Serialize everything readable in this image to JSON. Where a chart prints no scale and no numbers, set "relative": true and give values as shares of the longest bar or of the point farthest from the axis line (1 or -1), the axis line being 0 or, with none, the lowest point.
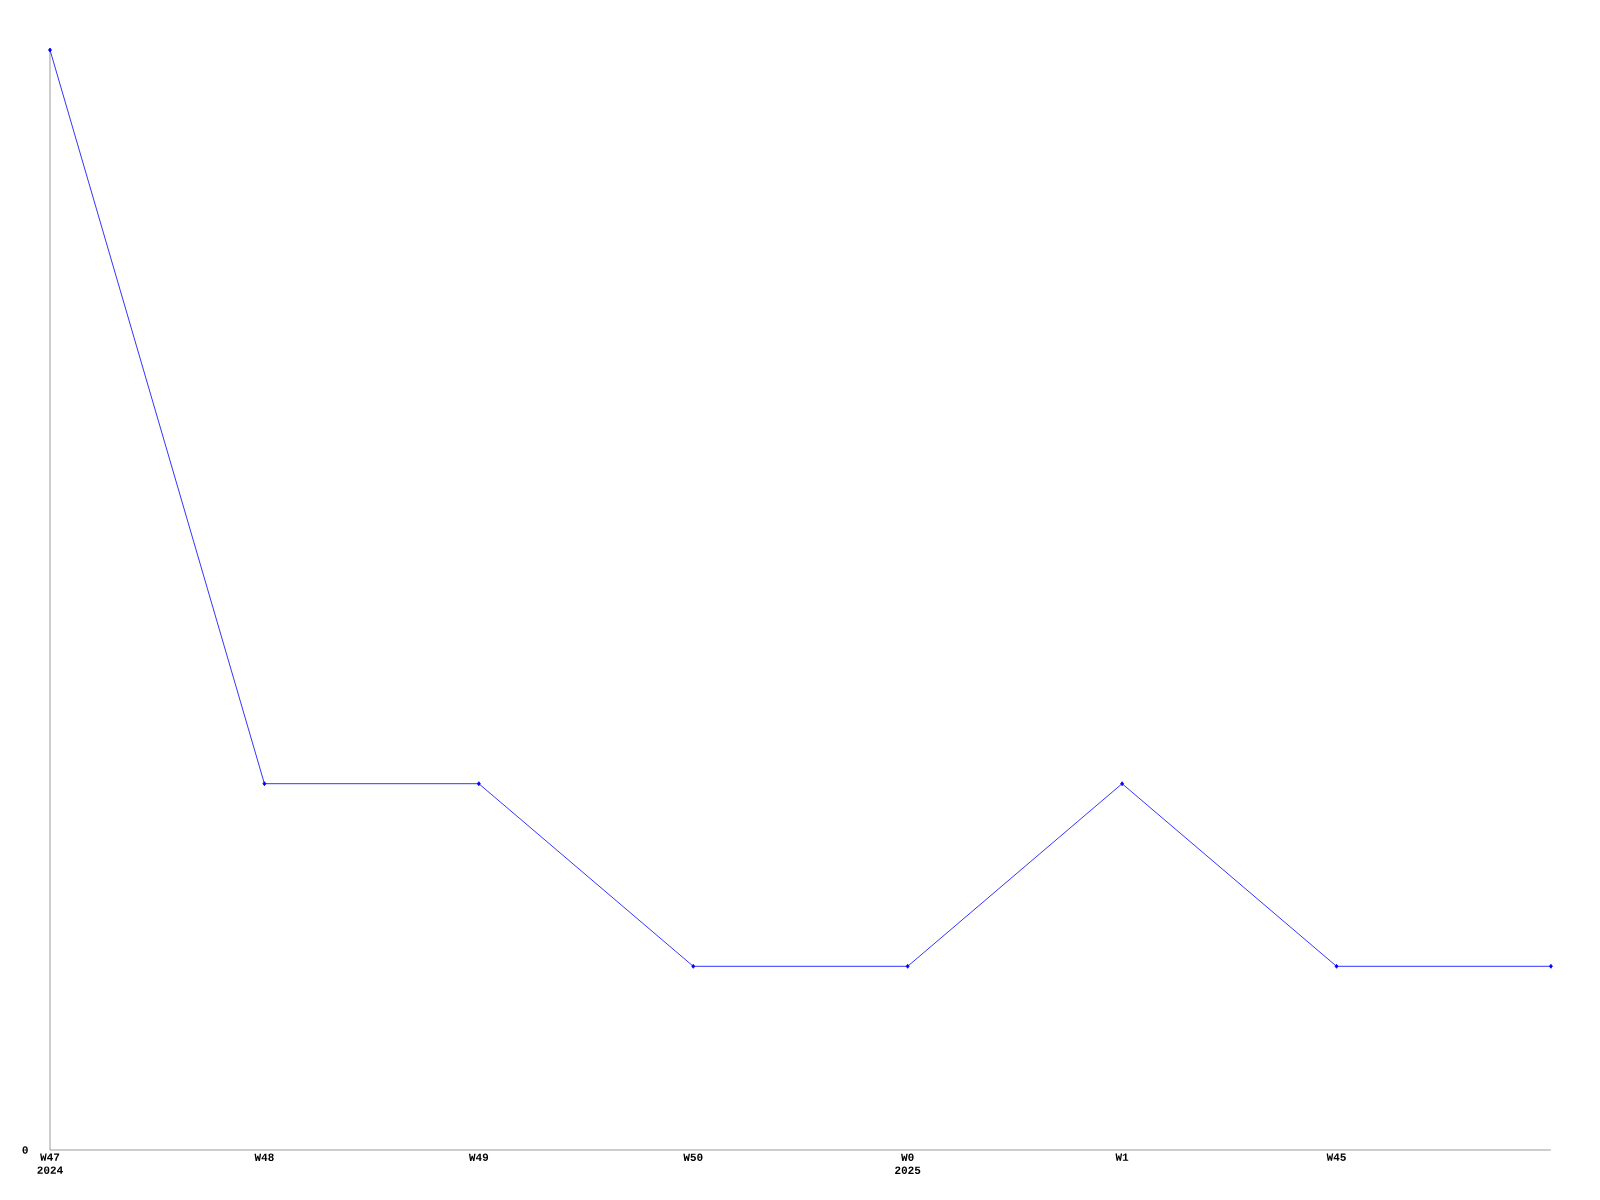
{
  "chart_data": {
    "type": "line",
    "relative": true,
    "categories": [
      "W47 2024",
      "W48",
      "W49",
      "W50",
      "W0 2025",
      "W1",
      "W45",
      null
    ],
    "series": [
      {
        "color": "#0000ff",
        "values": [
          1,
          0.333,
          0.333,
          0.167,
          0.167,
          0.333,
          0.167,
          0.167
        ]
      }
    ],
    "annotations": [
      "0"
    ],
    "marker": "diamond",
    "grid": false
  }
}
